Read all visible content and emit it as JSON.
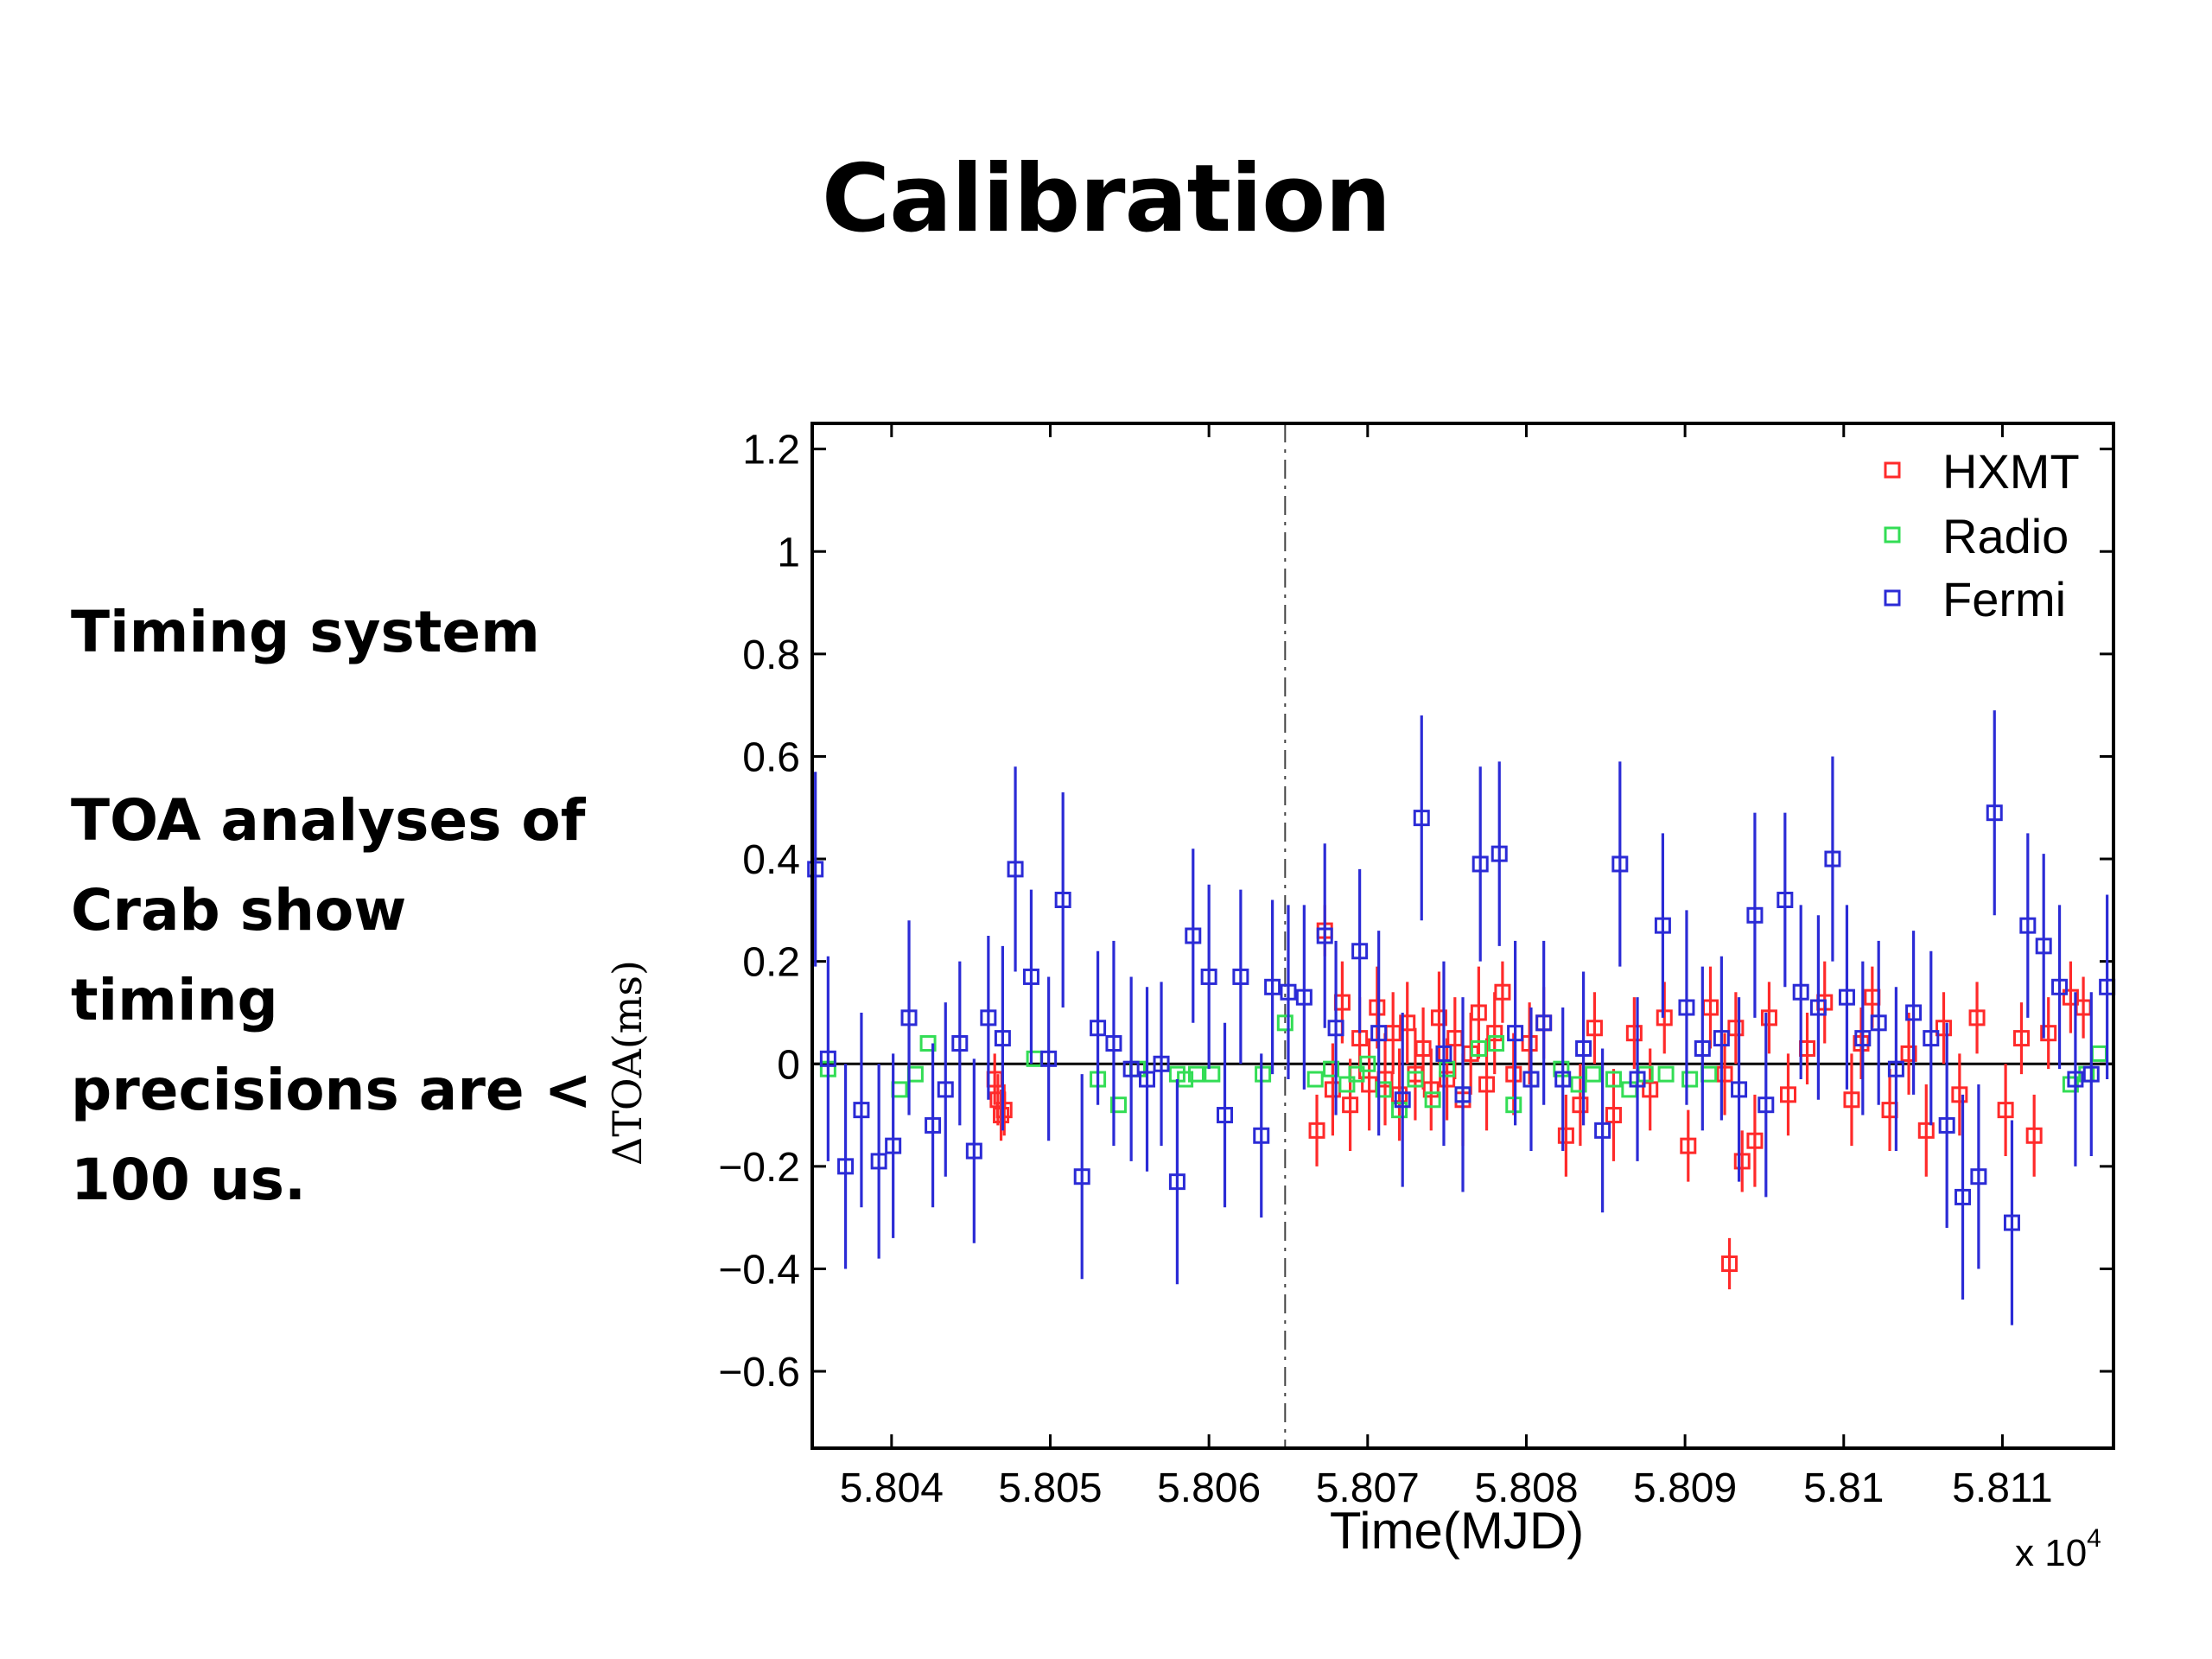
{
  "slide": {
    "title": "Calibration",
    "heading": "Timing system",
    "body": "TOA analyses of Crab show timing precisions are < 100 us."
  },
  "chart_data": {
    "type": "scatter",
    "xlabel": "Time(MJD)",
    "ylabel": "ΔTOA(ms)",
    "x_multiplier": "x 10",
    "x_multiplier_exp": "4",
    "xlim": [
      58035,
      58117
    ],
    "ylim": [
      -0.75,
      1.25
    ],
    "x_tick_labels": [
      "5.804",
      "5.805",
      "5.806",
      "5.807",
      "5.808",
      "5.809",
      "5.81",
      "5.811"
    ],
    "x_tick_values": [
      58040,
      58050,
      58060,
      58070,
      58080,
      58090,
      58100,
      58110
    ],
    "y_tick_labels": [
      "1.2",
      "1",
      "0.8",
      "0.6",
      "0.4",
      "0.2",
      "0",
      "−0.2",
      "−0.4",
      "−0.6"
    ],
    "y_tick_values": [
      1.2,
      1.0,
      0.8,
      0.6,
      0.4,
      0.2,
      0,
      -0.2,
      -0.4,
      -0.6
    ],
    "grid": false,
    "legend_position": "top-right",
    "reference_lines": {
      "horizontal_y": 0,
      "vertical_dashdot_x": 58064.8
    },
    "colors": {
      "HXMT": "#ff2a2a",
      "Radio": "#33dd55",
      "Fermi": "#2b2bd6",
      "axis": "#000000"
    },
    "series": [
      {
        "name": "HXMT",
        "x": [
          58046.5,
          58046.7,
          58046.9,
          58047.1,
          58066.8,
          58067.3,
          58067.8,
          58068.4,
          58068.9,
          58069.5,
          58070.1,
          58070.6,
          58071.1,
          58071.6,
          58072.0,
          58072.5,
          58073.0,
          58073.5,
          58074.0,
          58074.5,
          58075.0,
          58075.5,
          58076.0,
          58076.5,
          58077.0,
          58077.5,
          58078.0,
          58078.5,
          58079.2,
          58080.2,
          58081.1,
          58082.5,
          58083.4,
          58084.3,
          58085.5,
          58086.8,
          58087.8,
          58088.7,
          58090.2,
          58091.6,
          58092.5,
          58093.2,
          58093.6,
          58094.4,
          58095.3,
          58096.5,
          58097.7,
          58098.8,
          58100.5,
          58101.1,
          58101.8,
          58102.9,
          58104.1,
          58105.2,
          58106.3,
          58107.3,
          58108.4,
          58110.2,
          58111.2,
          58112.0,
          58112.9,
          58114.3,
          58115.1,
          58092.8
        ],
        "y": [
          -0.03,
          -0.07,
          -0.1,
          -0.09,
          -0.13,
          0.26,
          -0.05,
          0.12,
          -0.08,
          0.05,
          -0.04,
          0.11,
          -0.03,
          0.06,
          -0.06,
          0.08,
          -0.02,
          0.03,
          -0.05,
          0.09,
          -0.03,
          0.05,
          -0.07,
          0.02,
          0.1,
          -0.04,
          0.06,
          0.14,
          -0.02,
          0.04,
          0.08,
          -0.14,
          -0.08,
          0.07,
          -0.1,
          0.06,
          -0.05,
          0.09,
          -0.16,
          0.11,
          -0.02,
          0.07,
          -0.19,
          -0.15,
          0.09,
          -0.06,
          0.03,
          0.12,
          -0.07,
          0.04,
          0.13,
          -0.09,
          0.02,
          -0.13,
          0.07,
          -0.06,
          0.09,
          -0.09,
          0.05,
          -0.14,
          0.06,
          0.13,
          0.11,
          -0.39
        ],
        "err": [
          0.05,
          0.05,
          0.05,
          0.05,
          0.07,
          0.05,
          0.09,
          0.08,
          0.09,
          0.08,
          0.09,
          0.08,
          0.09,
          0.08,
          0.09,
          0.08,
          0.09,
          0.08,
          0.08,
          0.09,
          0.08,
          0.08,
          0.09,
          0.08,
          0.09,
          0.09,
          0.08,
          0.06,
          0.08,
          0.08,
          0.07,
          0.08,
          0.08,
          0.07,
          0.09,
          0.07,
          0.08,
          0.07,
          0.07,
          0.08,
          0.08,
          0.07,
          0.06,
          0.09,
          0.07,
          0.08,
          0.07,
          0.08,
          0.09,
          0.07,
          0.06,
          0.08,
          0.08,
          0.09,
          0.07,
          0.08,
          0.07,
          0.09,
          0.07,
          0.08,
          0.07,
          0.07,
          0.06,
          0.05
        ]
      },
      {
        "name": "Radio",
        "x": [
          58036.0,
          58040.5,
          58041.5,
          58042.3,
          58049.0,
          58053.0,
          58054.3,
          58055.5,
          58058.0,
          58058.5,
          58059.2,
          58060.2,
          58063.4,
          58064.8,
          58066.7,
          58067.7,
          58068.7,
          58069.3,
          58070.0,
          58071.0,
          58072.0,
          58073.0,
          58074.1,
          58075.0,
          58076.0,
          58077.0,
          58078.1,
          58079.2,
          58080.3,
          58082.2,
          58083.3,
          58084.2,
          58085.5,
          58086.5,
          58087.5,
          58088.8,
          58090.3,
          58091.5,
          58114.3,
          58115.3,
          58116.1
        ],
        "y": [
          -0.01,
          -0.05,
          -0.02,
          0.04,
          0.01,
          -0.03,
          -0.08,
          -0.01,
          -0.02,
          -0.03,
          -0.02,
          -0.02,
          -0.02,
          0.08,
          -0.03,
          -0.01,
          -0.04,
          -0.02,
          0.0,
          -0.05,
          -0.09,
          -0.03,
          -0.07,
          -0.01,
          -0.06,
          0.03,
          0.04,
          -0.08,
          -0.03,
          -0.01,
          -0.04,
          -0.02,
          -0.03,
          -0.05,
          -0.02,
          -0.02,
          -0.03,
          -0.02,
          -0.04,
          -0.02,
          0.02
        ],
        "err": [
          0.01,
          0.01,
          0.01,
          0.01,
          0.01,
          0.01,
          0.01,
          0.01,
          0.01,
          0.01,
          0.01,
          0.01,
          0.01,
          0.01,
          0.01,
          0.01,
          0.01,
          0.01,
          0.01,
          0.01,
          0.01,
          0.01,
          0.01,
          0.01,
          0.01,
          0.01,
          0.01,
          0.01,
          0.01,
          0.01,
          0.01,
          0.01,
          0.01,
          0.01,
          0.01,
          0.01,
          0.01,
          0.01,
          0.01,
          0.01,
          0.01
        ]
      },
      {
        "name": "Fermi",
        "x": [
          58035.2,
          58036.0,
          58037.1,
          58038.1,
          58039.2,
          58040.1,
          58041.1,
          58042.6,
          58043.4,
          58044.3,
          58045.2,
          58046.1,
          58047.0,
          58047.8,
          58048.8,
          58049.9,
          58050.8,
          58052.0,
          58053.0,
          58054.0,
          58055.1,
          58056.1,
          58057.0,
          58058.0,
          58059.0,
          58060.0,
          58061.0,
          58062.0,
          58063.3,
          58064.0,
          58065.0,
          58066.0,
          58067.3,
          58068.0,
          58069.5,
          58070.7,
          58072.2,
          58073.4,
          58074.8,
          58076.0,
          58077.1,
          58078.3,
          58079.3,
          58080.3,
          58081.1,
          58082.3,
          58083.6,
          58084.8,
          58085.9,
          58087.0,
          58088.6,
          58090.1,
          58091.1,
          58092.3,
          58093.4,
          58094.4,
          58095.1,
          58096.3,
          58097.3,
          58098.4,
          58099.3,
          58100.2,
          58101.2,
          58102.2,
          58103.3,
          58104.4,
          58105.5,
          58106.5,
          58107.5,
          58108.5,
          58109.5,
          58110.6,
          58111.6,
          58112.6,
          58113.6,
          58114.6,
          58115.6,
          58116.6
        ],
        "y": [
          0.38,
          0.01,
          -0.2,
          -0.09,
          -0.19,
          -0.16,
          0.09,
          -0.12,
          -0.05,
          0.04,
          -0.17,
          0.09,
          0.05,
          0.38,
          0.17,
          0.01,
          0.32,
          -0.22,
          0.07,
          0.04,
          -0.01,
          -0.03,
          0.0,
          -0.23,
          0.25,
          0.17,
          -0.1,
          0.17,
          -0.14,
          0.15,
          0.14,
          0.13,
          0.25,
          0.07,
          0.22,
          0.06,
          -0.07,
          0.48,
          0.02,
          -0.06,
          0.39,
          0.41,
          0.06,
          -0.03,
          0.08,
          -0.03,
          0.03,
          -0.13,
          0.39,
          -0.03,
          0.27,
          0.11,
          0.03,
          0.05,
          -0.05,
          0.29,
          -0.08,
          0.32,
          0.14,
          0.11,
          0.4,
          0.13,
          0.05,
          0.08,
          -0.01,
          0.1,
          0.05,
          -0.12,
          -0.26,
          -0.22,
          0.49,
          -0.31,
          0.27,
          0.23,
          0.15,
          -0.03,
          -0.02,
          0.15
        ],
        "err": [
          0.19,
          0.2,
          0.2,
          0.19,
          0.19,
          0.18,
          0.19,
          0.16,
          0.17,
          0.16,
          0.18,
          0.16,
          0.18,
          0.2,
          0.17,
          0.16,
          0.21,
          0.2,
          0.15,
          0.2,
          0.18,
          0.18,
          0.16,
          0.2,
          0.17,
          0.18,
          0.18,
          0.17,
          0.16,
          0.17,
          0.17,
          0.18,
          0.18,
          0.17,
          0.16,
          0.2,
          0.17,
          0.2,
          0.18,
          0.19,
          0.19,
          0.18,
          0.18,
          0.14,
          0.16,
          0.14,
          0.15,
          0.16,
          0.2,
          0.16,
          0.18,
          0.19,
          0.16,
          0.16,
          0.18,
          0.2,
          0.18,
          0.17,
          0.17,
          0.18,
          0.2,
          0.18,
          0.15,
          0.16,
          0.16,
          0.16,
          0.17,
          0.2,
          0.2,
          0.18,
          0.2,
          0.2,
          0.18,
          0.18,
          0.16,
          0.17,
          0.16,
          0.18
        ]
      }
    ]
  }
}
